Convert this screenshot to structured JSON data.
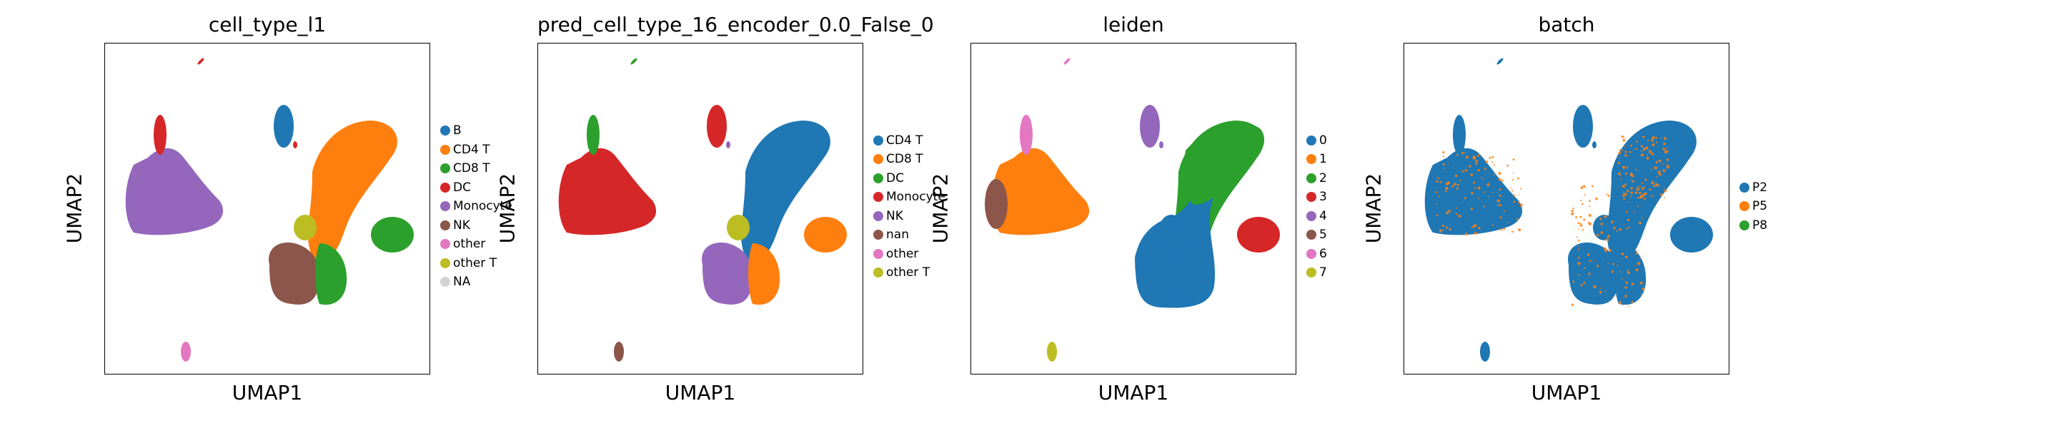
{
  "chart_data": [
    {
      "type": "scatter",
      "title": "cell_type_l1",
      "xlabel": "UMAP1",
      "ylabel": "UMAP2",
      "legend_placement": "right",
      "grid": false,
      "legend": [
        {
          "name": "B",
          "color": "#1f77b4"
        },
        {
          "name": "CD4 T",
          "color": "#ff7f0e"
        },
        {
          "name": "CD8 T",
          "color": "#2ca02c"
        },
        {
          "name": "DC",
          "color": "#d62728"
        },
        {
          "name": "Monocyte",
          "color": "#9467bd"
        },
        {
          "name": "NK",
          "color": "#8c564b"
        },
        {
          "name": "other",
          "color": "#e377c2"
        },
        {
          "name": "other T",
          "color": "#bcbd22"
        },
        {
          "name": "NA",
          "color": "#d3d3d3"
        }
      ],
      "clusters": {
        "topmark": "DC",
        "bcell": "B",
        "bspeck": "DC",
        "mono": "Monocyte",
        "monoTop": "DC",
        "rightIsland": "CD8 T",
        "tcellTop": "CD4 T",
        "tcellMid": "CD4 T",
        "bottom": "NK",
        "bottomRight": "CD8 T",
        "otherT": "other T",
        "tinyBottom": "other"
      }
    },
    {
      "type": "scatter",
      "title": "pred_cell_type_16_encoder_0.0_False_0",
      "xlabel": "UMAP1",
      "ylabel": "UMAP2",
      "legend_placement": "right",
      "grid": false,
      "legend": [
        {
          "name": "CD4 T",
          "color": "#1f77b4"
        },
        {
          "name": "CD8 T",
          "color": "#ff7f0e"
        },
        {
          "name": "DC",
          "color": "#2ca02c"
        },
        {
          "name": "Monocyte",
          "color": "#d62728"
        },
        {
          "name": "NK",
          "color": "#9467bd"
        },
        {
          "name": "nan",
          "color": "#8c564b"
        },
        {
          "name": "other",
          "color": "#e377c2"
        },
        {
          "name": "other T",
          "color": "#bcbd22"
        }
      ],
      "clusters": {
        "topmark": "DC",
        "bcell": "Monocyte",
        "bspeck": "NK",
        "mono": "Monocyte",
        "monoTop": "DC",
        "rightIsland": "CD8 T",
        "tcellTop": "CD4 T",
        "tcellMid": "CD4 T",
        "bottom": "NK",
        "bottomRight": "CD8 T",
        "otherT": "other T",
        "tinyBottom": "nan"
      }
    },
    {
      "type": "scatter",
      "title": "leiden",
      "xlabel": "UMAP1",
      "ylabel": "UMAP2",
      "legend_placement": "right",
      "grid": false,
      "legend": [
        {
          "name": "0",
          "color": "#1f77b4"
        },
        {
          "name": "1",
          "color": "#ff7f0e"
        },
        {
          "name": "2",
          "color": "#2ca02c"
        },
        {
          "name": "3",
          "color": "#d62728"
        },
        {
          "name": "4",
          "color": "#9467bd"
        },
        {
          "name": "5",
          "color": "#8c564b"
        },
        {
          "name": "6",
          "color": "#e377c2"
        },
        {
          "name": "7",
          "color": "#bcbd22"
        }
      ],
      "clusters": {
        "topmark": "6",
        "bcell": "4",
        "bspeck": "4",
        "mono": "1",
        "monoTop": "6",
        "monoLeft": "5",
        "rightIsland": "3",
        "tcellTop": "2",
        "tcellMid": "0",
        "bottom": "0",
        "bottomRight": "0",
        "otherT": "0",
        "tinyBottom": "7"
      }
    },
    {
      "type": "scatter",
      "title": "batch",
      "xlabel": "UMAP1",
      "ylabel": "UMAP2",
      "legend_placement": "right",
      "grid": false,
      "legend": [
        {
          "name": "P2",
          "color": "#1f77b4"
        },
        {
          "name": "P5",
          "color": "#ff7f0e"
        },
        {
          "name": "P8",
          "color": "#2ca02c"
        }
      ],
      "clusters": {
        "topmark": "P2",
        "bcell": "P2",
        "bspeck": "P2",
        "mono": "P2",
        "monoTop": "P2",
        "rightIsland": "P2",
        "tcellTop": "P2",
        "tcellMid": "P2",
        "bottom": "P2",
        "bottomRight": "P2",
        "otherT": "P2",
        "tinyBottom": "P2"
      },
      "speckle": "P5"
    }
  ]
}
